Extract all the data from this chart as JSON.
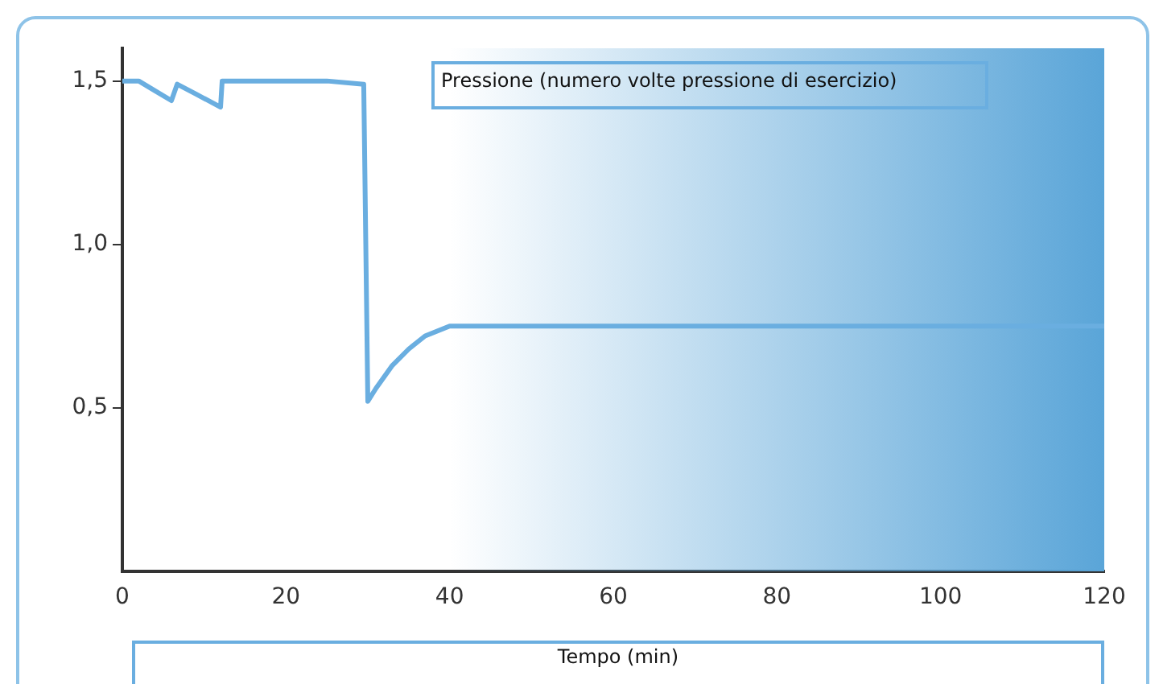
{
  "chart_data": {
    "type": "line",
    "xlabel": "Tempo (min)",
    "ylabel": "Pressione (numero volte pressione di esercizio)",
    "series": [
      {
        "color": "#6aaee0",
        "x": [
          0,
          2,
          4,
          6,
          6.7,
          9,
          12,
          12.2,
          25,
          29.5,
          30,
          31,
          33,
          35,
          37,
          40,
          120
        ],
        "values": [
          1.5,
          1.5,
          1.47,
          1.44,
          1.49,
          1.46,
          1.42,
          1.5,
          1.5,
          1.49,
          0.52,
          0.56,
          0.63,
          0.68,
          0.72,
          0.75,
          0.75
        ]
      }
    ],
    "xlim": [
      0,
      120
    ],
    "xticks": [
      0,
      20,
      40,
      60,
      80,
      100,
      120
    ],
    "ylim": [
      0,
      1.6
    ],
    "yticks": [
      {
        "value": 0.5,
        "label": "0,5"
      },
      {
        "value": 1,
        "label": "1,0"
      },
      {
        "value": 1.5,
        "label": "1,5"
      }
    ],
    "bands": [
      {
        "axis": "x",
        "from": 40,
        "to": 120,
        "color": "#5aa5d8"
      }
    ],
    "grid": false,
    "legend": false,
    "marker": "none",
    "line_style": "solid"
  }
}
